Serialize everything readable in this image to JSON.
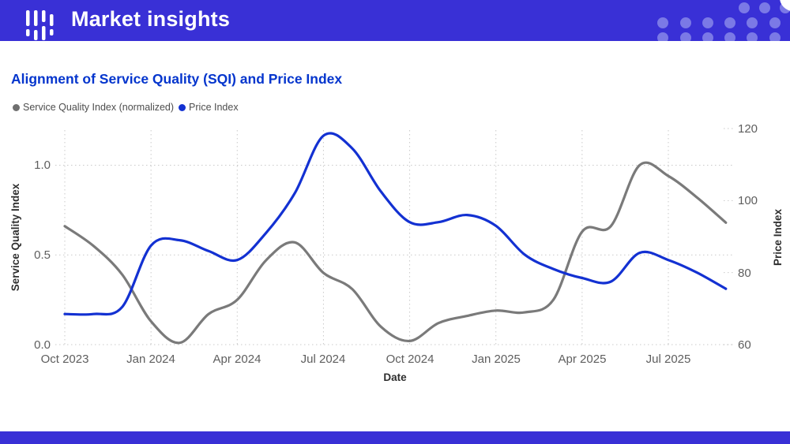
{
  "header": {
    "title": "Market insights",
    "bg": "#3930d6",
    "dot_color": "#7b79e6"
  },
  "chart": {
    "title": "Alignment of Service Quality (SQI) and Price Index",
    "title_color": "#0435cd"
  },
  "legend": [
    {
      "label": "Service Quality Index (normalized)",
      "color": "#6f6f6f"
    },
    {
      "label": "Price Index",
      "color": "#1331d2"
    }
  ],
  "chart_data": {
    "type": "line",
    "x": [
      "2023-10",
      "2023-11",
      "2023-12",
      "2024-01",
      "2024-02",
      "2024-03",
      "2024-04",
      "2024-05",
      "2024-06",
      "2024-07",
      "2024-08",
      "2024-09",
      "2024-10",
      "2024-11",
      "2024-12",
      "2025-01",
      "2025-02",
      "2025-03",
      "2025-04",
      "2025-05",
      "2025-06",
      "2025-07",
      "2025-08",
      "2025-09"
    ],
    "series": [
      {
        "name": "Service Quality Index (normalized)",
        "axis": "left",
        "color": "#7a7a7a",
        "values": [
          0.66,
          0.55,
          0.39,
          0.13,
          0.01,
          0.17,
          0.25,
          0.47,
          0.57,
          0.4,
          0.31,
          0.1,
          0.02,
          0.12,
          0.16,
          0.19,
          0.18,
          0.25,
          0.63,
          0.66,
          1.0,
          0.94,
          0.82,
          0.68
        ]
      },
      {
        "name": "Price Index",
        "axis": "right",
        "color": "#1331d2",
        "values": [
          68.5,
          68.5,
          70.5,
          87.5,
          89,
          86,
          83.5,
          91,
          102,
          118,
          114.5,
          102.5,
          94,
          94,
          96,
          93,
          85,
          81,
          78.5,
          77.5,
          85.5,
          83.5,
          80,
          75.5
        ]
      }
    ],
    "title": "Alignment of Service Quality (SQI) and Price Index",
    "xlabel": "Date",
    "ylabel_left": "Service Quality Index",
    "ylabel_right": "Price Index",
    "x_tick_labels": [
      "Oct 2023",
      "Jan 2024",
      "Apr 2024",
      "Jul 2024",
      "Oct 2024",
      "Jan 2025",
      "Apr 2025",
      "Jul 2025"
    ],
    "y_left_tick_labels": [
      "0.0",
      "0.5",
      "1.0"
    ],
    "y_left_tick_values": [
      0,
      0.5,
      1
    ],
    "y_right_tick_labels": [
      "60",
      "80",
      "100",
      "120"
    ],
    "y_right_tick_values": [
      60,
      80,
      100,
      120
    ],
    "ylim_left": [
      0,
      1.05
    ],
    "ylim_right": [
      60,
      120
    ],
    "grid": "dotted",
    "legend_position": "top-left"
  }
}
